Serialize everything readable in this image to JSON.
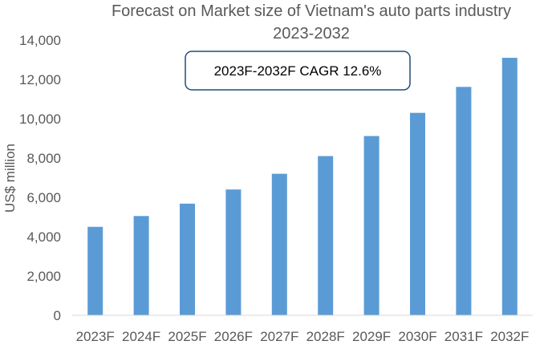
{
  "chart_data": {
    "type": "bar",
    "title": "Forecast  on Market size of Vietnam's auto parts industry",
    "subtitle": "2023-2032",
    "xlabel": "",
    "ylabel": "US$ million",
    "categories": [
      "2023F",
      "2024F",
      "2025F",
      "2026F",
      "2027F",
      "2028F",
      "2029F",
      "2030F",
      "2031F",
      "2032F"
    ],
    "values": [
      4500,
      5050,
      5680,
      6400,
      7200,
      8100,
      9120,
      10300,
      11620,
      13100
    ],
    "ylim": [
      0,
      14000
    ],
    "yticks": [
      "0",
      "2,000",
      "4,000",
      "6,000",
      "8,000",
      "10,000",
      "12,000",
      "14,000"
    ],
    "grid": false,
    "legend": "none",
    "bar_color": "#5b9bd5",
    "annotation": "2023F-2032F CAGR 12.6%",
    "annotation_border_color": "#1f4e79"
  }
}
